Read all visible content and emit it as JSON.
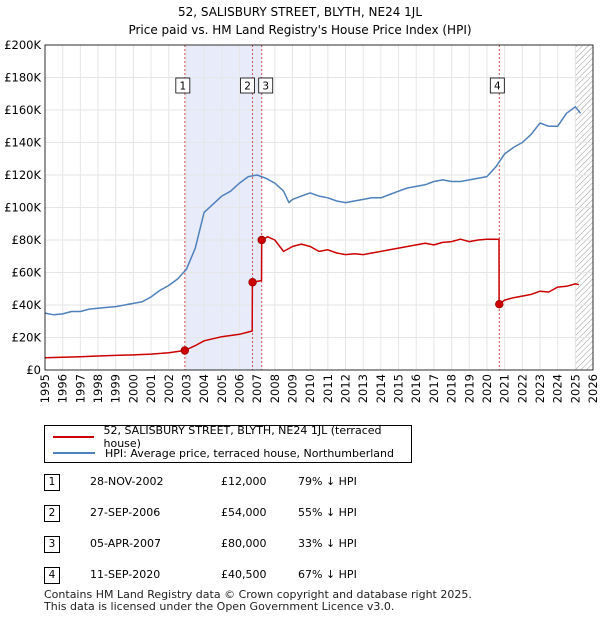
{
  "title_line1": "52, SALISBURY STREET, BLYTH, NE24 1JL",
  "title_line2": "Price paid vs. HM Land Registry's House Price Index (HPI)",
  "colors": {
    "price_paid": "#cc0000",
    "hpi": "#4f81bd",
    "sale_band": "#e8ecfa",
    "future_hatch": "#999999",
    "grid": "#e6e6e6",
    "marker_line": "#d05050"
  },
  "chart_data": {
    "type": "line",
    "title": "Price paid vs. HM Land Registry's House Price Index (HPI)",
    "xlabel": "",
    "ylabel": "",
    "xlim": [
      1995,
      2026
    ],
    "ylim": [
      0,
      200000
    ],
    "x_ticks": [
      "1995",
      "1996",
      "1997",
      "1998",
      "1999",
      "2000",
      "2001",
      "2002",
      "2003",
      "2004",
      "2005",
      "2006",
      "2007",
      "2008",
      "2009",
      "2010",
      "2011",
      "2012",
      "2013",
      "2014",
      "2015",
      "2016",
      "2017",
      "2018",
      "2019",
      "2020",
      "2021",
      "2022",
      "2023",
      "2024",
      "2025",
      "2026"
    ],
    "y_ticks": [
      {
        "value": 0,
        "label": "£0"
      },
      {
        "value": 20000,
        "label": "£20K"
      },
      {
        "value": 40000,
        "label": "£40K"
      },
      {
        "value": 60000,
        "label": "£60K"
      },
      {
        "value": 80000,
        "label": "£80K"
      },
      {
        "value": 100000,
        "label": "£100K"
      },
      {
        "value": 120000,
        "label": "£120K"
      },
      {
        "value": 140000,
        "label": "£140K"
      },
      {
        "value": 160000,
        "label": "£160K"
      },
      {
        "value": 180000,
        "label": "£180K"
      },
      {
        "value": 200000,
        "label": "£200K"
      }
    ],
    "grid": true,
    "shaded_band": {
      "x0": 2002.91,
      "x1": 2007.26
    },
    "future_hatch_from": 2025.0,
    "series": [
      {
        "name": "52, SALISBURY STREET, BLYTH, NE24 1JL (terraced house)",
        "color": "#cc0000",
        "x": [
          1995.0,
          1996.0,
          1997.0,
          1998.0,
          1999.0,
          2000.0,
          2001.0,
          2002.0,
          2002.9,
          2003.5,
          2004.0,
          2005.0,
          2006.0,
          2006.72,
          2006.73,
          2007.0,
          2007.25,
          2007.26,
          2007.6,
          2008.0,
          2008.5,
          2009.0,
          2009.5,
          2010.0,
          2010.5,
          2011.0,
          2011.5,
          2012.0,
          2012.5,
          2013.0,
          2013.5,
          2014.0,
          2014.5,
          2015.0,
          2015.5,
          2016.0,
          2016.5,
          2017.0,
          2017.5,
          2018.0,
          2018.5,
          2019.0,
          2019.5,
          2020.0,
          2020.68,
          2020.69,
          2021.0,
          2021.5,
          2022.0,
          2022.5,
          2023.0,
          2023.5,
          2024.0,
          2024.5,
          2025.0,
          2025.2
        ],
        "y": [
          7500,
          7800,
          8200,
          8600,
          9000,
          9300,
          9800,
          10600,
          12000,
          15000,
          18000,
          20500,
          22000,
          24000,
          54000,
          54500,
          55000,
          80000,
          82000,
          80000,
          73000,
          76000,
          77500,
          76000,
          73000,
          74000,
          72000,
          71000,
          71500,
          71000,
          72000,
          73000,
          74000,
          75000,
          76000,
          77000,
          78000,
          77000,
          78500,
          79000,
          80500,
          79000,
          80000,
          80500,
          80500,
          40500,
          43000,
          44500,
          45500,
          46500,
          48500,
          48000,
          51000,
          51500,
          53000,
          52500
        ],
        "sales": [
          {
            "id": "1",
            "x": 2002.91,
            "y": 12000
          },
          {
            "id": "2",
            "x": 2006.74,
            "y": 54000
          },
          {
            "id": "3",
            "x": 2007.26,
            "y": 80000
          },
          {
            "id": "4",
            "x": 2020.7,
            "y": 40500
          }
        ]
      },
      {
        "name": "HPI: Average price, terraced house, Northumberland",
        "color": "#4f81bd",
        "x": [
          1995.0,
          1995.5,
          1996.0,
          1996.5,
          1997.0,
          1997.5,
          1998.0,
          1998.5,
          1999.0,
          1999.5,
          2000.0,
          2000.5,
          2001.0,
          2001.5,
          2002.0,
          2002.5,
          2003.0,
          2003.5,
          2004.0,
          2004.5,
          2005.0,
          2005.5,
          2006.0,
          2006.5,
          2007.0,
          2007.5,
          2008.0,
          2008.5,
          2008.8,
          2009.0,
          2009.5,
          2010.0,
          2010.5,
          2011.0,
          2011.5,
          2012.0,
          2012.5,
          2013.0,
          2013.5,
          2014.0,
          2014.5,
          2015.0,
          2015.5,
          2016.0,
          2016.5,
          2017.0,
          2017.5,
          2018.0,
          2018.5,
          2019.0,
          2019.5,
          2020.0,
          2020.5,
          2021.0,
          2021.5,
          2022.0,
          2022.5,
          2023.0,
          2023.5,
          2024.0,
          2024.5,
          2025.0,
          2025.3
        ],
        "y": [
          35000,
          34000,
          34500,
          36000,
          36000,
          37500,
          38000,
          38500,
          39000,
          40000,
          41000,
          42000,
          45000,
          49000,
          52000,
          56000,
          62000,
          75000,
          97000,
          102000,
          107000,
          110000,
          115000,
          119000,
          120000,
          118000,
          115000,
          110000,
          103000,
          105000,
          107000,
          109000,
          107000,
          106000,
          104000,
          103000,
          104000,
          105000,
          106000,
          106000,
          108000,
          110000,
          112000,
          113000,
          114000,
          116000,
          117000,
          116000,
          116000,
          117000,
          118000,
          119000,
          125000,
          133000,
          137000,
          140000,
          145000,
          152000,
          150000,
          150000,
          158000,
          162000,
          158000
        ]
      }
    ]
  },
  "legend": {
    "price_paid_label": "52, SALISBURY STREET, BLYTH, NE24 1JL (terraced house)",
    "hpi_label": "HPI: Average price, terraced house, Northumberland"
  },
  "transactions": [
    {
      "num": "1",
      "date": "28-NOV-2002",
      "price": "£12,000",
      "pct": "79% ↓ HPI"
    },
    {
      "num": "2",
      "date": "27-SEP-2006",
      "price": "£54,000",
      "pct": "55% ↓ HPI"
    },
    {
      "num": "3",
      "date": "05-APR-2007",
      "price": "£80,000",
      "pct": "33% ↓ HPI"
    },
    {
      "num": "4",
      "date": "11-SEP-2020",
      "price": "£40,500",
      "pct": "67% ↓ HPI"
    }
  ],
  "footer_line1": "Contains HM Land Registry data © Crown copyright and database right 2025.",
  "footer_line2": "This data is licensed under the Open Government Licence v3.0."
}
